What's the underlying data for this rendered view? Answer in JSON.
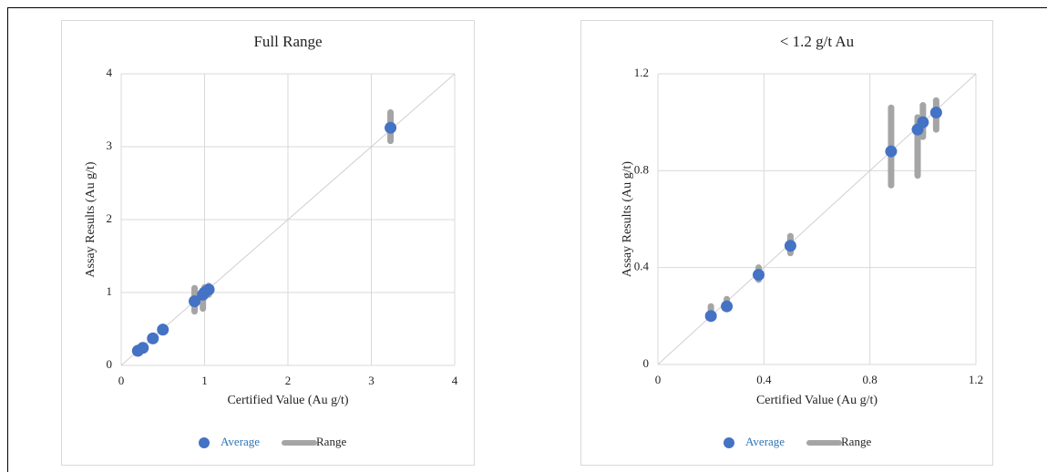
{
  "chart_data": [
    {
      "type": "scatter",
      "title": "Full Range",
      "x_label": "Certified Value (Au g/t)",
      "y_label": "Assay Results (Au g/t)",
      "xlim": [
        0,
        4
      ],
      "ylim": [
        0,
        4
      ],
      "xticks": [
        0,
        1,
        2,
        3,
        4
      ],
      "yticks": [
        0,
        1,
        2,
        3,
        4
      ],
      "grid": true,
      "series": [
        {
          "name": "Average",
          "color": "#4472c4",
          "x": [
            0.2,
            0.26,
            0.38,
            0.5,
            0.88,
            0.98,
            1.0,
            1.05,
            3.23
          ],
          "values": [
            0.2,
            0.24,
            0.37,
            0.49,
            0.88,
            0.97,
            1.0,
            1.04,
            3.26
          ]
        },
        {
          "name": "Range",
          "color": "#a5a5a5",
          "x": [
            0.2,
            0.26,
            0.38,
            0.5,
            0.88,
            0.98,
            1.0,
            1.05,
            3.23
          ],
          "low": [
            0.19,
            0.23,
            0.35,
            0.46,
            0.74,
            0.78,
            0.94,
            0.97,
            3.08
          ],
          "high": [
            0.24,
            0.27,
            0.4,
            0.53,
            1.06,
            1.02,
            1.07,
            1.09,
            3.47
          ]
        }
      ]
    },
    {
      "type": "scatter",
      "title": "< 1.2 g/t Au",
      "x_label": "Certified Value (Au g/t)",
      "y_label": "Assay Results (Au g/t)",
      "xlim": [
        0,
        1.2
      ],
      "ylim": [
        0,
        1.2
      ],
      "xticks": [
        0,
        0.4,
        0.8,
        1.2
      ],
      "yticks": [
        0,
        0.4,
        0.8,
        1.2
      ],
      "grid": true,
      "series": [
        {
          "name": "Average",
          "color": "#4472c4",
          "x": [
            0.2,
            0.26,
            0.38,
            0.5,
            0.88,
            0.98,
            1.0,
            1.05
          ],
          "values": [
            0.2,
            0.24,
            0.37,
            0.49,
            0.88,
            0.97,
            1.0,
            1.04
          ]
        },
        {
          "name": "Range",
          "color": "#a5a5a5",
          "x": [
            0.2,
            0.26,
            0.38,
            0.5,
            0.88,
            0.98,
            1.0,
            1.05
          ],
          "low": [
            0.19,
            0.23,
            0.35,
            0.46,
            0.74,
            0.78,
            0.94,
            0.97
          ],
          "high": [
            0.24,
            0.27,
            0.4,
            0.53,
            1.06,
            1.02,
            1.07,
            1.09
          ]
        }
      ]
    }
  ]
}
